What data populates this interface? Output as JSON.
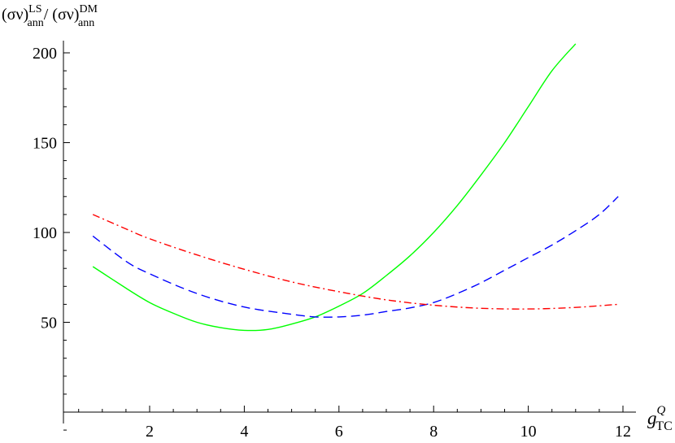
{
  "chart_data": {
    "type": "line",
    "title": "",
    "xlabel": {
      "base": "g",
      "sup": "Q",
      "sub": "TC"
    },
    "ylabel": {
      "part1": "(σν)",
      "sup1": "LS",
      "sub1": "ann",
      "slash": "/ ",
      "part2": "(σν)",
      "sup2": "DM",
      "sub2": "ann"
    },
    "xlim": [
      0.3,
      12.4
    ],
    "ylim": [
      -20,
      210
    ],
    "x_ticks": [
      2,
      4,
      6,
      8,
      10,
      12
    ],
    "y_ticks": [
      50,
      100,
      150,
      200
    ],
    "grid": false,
    "legend": "none",
    "series": [
      {
        "color": "#00ff00",
        "dash": "none",
        "x": [
          0.8,
          1.5,
          2,
          2.5,
          3,
          3.5,
          4,
          4.5,
          5,
          5.5,
          6,
          6.5,
          7,
          7.5,
          8,
          8.5,
          9,
          9.5,
          10,
          10.5,
          11
        ],
        "y": [
          81,
          69,
          61,
          55,
          50,
          47,
          45.5,
          46,
          49,
          53,
          59,
          66,
          76,
          87,
          100,
          115,
          132,
          150,
          170,
          190,
          205
        ]
      },
      {
        "color": "#0000ff",
        "dash": "11,6",
        "x": [
          0.8,
          1.5,
          2,
          3,
          4,
          5,
          5.5,
          6,
          6.5,
          7,
          7.5,
          8,
          8.5,
          9,
          9.5,
          10,
          10.5,
          11,
          11.5,
          11.9
        ],
        "y": [
          98,
          84,
          77,
          66,
          58.5,
          54.5,
          53,
          53,
          54,
          56,
          58,
          61,
          66,
          72,
          79,
          86,
          93,
          101,
          110,
          120
        ]
      },
      {
        "color": "#ff0000",
        "dash": "9,4,2,4",
        "x": [
          0.8,
          1.5,
          2,
          3,
          4,
          5,
          6,
          7,
          8,
          9,
          10,
          11,
          11.9
        ],
        "y": [
          110,
          102,
          96.5,
          87.5,
          79.5,
          72.5,
          67,
          62.5,
          59.5,
          57.8,
          57.4,
          58.3,
          60
        ]
      }
    ]
  }
}
